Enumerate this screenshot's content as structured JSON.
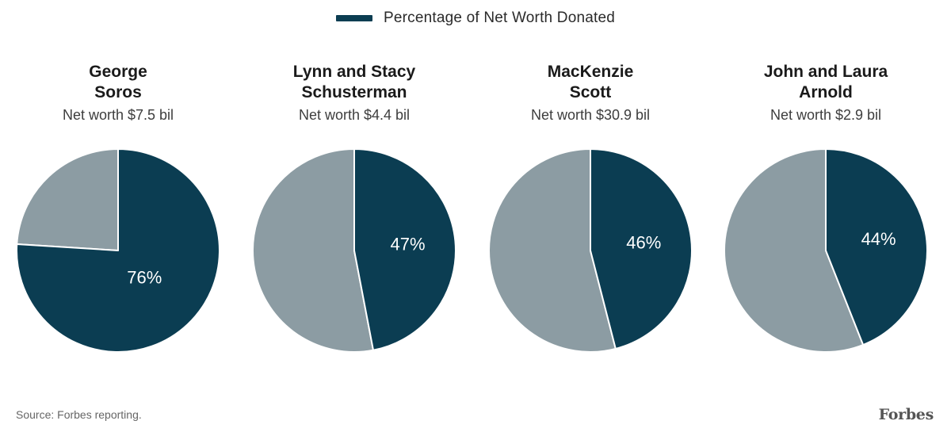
{
  "colors": {
    "donated": "#0b3d52",
    "remaining": "#8c9ca3",
    "label_text": "#ffffff",
    "divider": "#ffffff"
  },
  "legend": {
    "label": "Percentage of Net Worth Donated",
    "swatch_icon": "legend-bar-swatch"
  },
  "chart_data": {
    "type": "pie",
    "series_name": "Percentage of Net Worth Donated",
    "unit": "%",
    "panels": [
      {
        "name_lines": [
          "George",
          "Soros"
        ],
        "subtitle": "Net worth $7.5 bil",
        "donated_percent": 76,
        "label": "76%"
      },
      {
        "name_lines": [
          "Lynn and Stacy",
          "Schusterman"
        ],
        "subtitle": "Net worth $4.4 bil",
        "donated_percent": 47,
        "label": "47%"
      },
      {
        "name_lines": [
          "MacKenzie",
          "Scott"
        ],
        "subtitle": "Net worth $30.9 bil",
        "donated_percent": 46,
        "label": "46%"
      },
      {
        "name_lines": [
          "John and Laura",
          "Arnold"
        ],
        "subtitle": "Net worth $2.9 bil",
        "donated_percent": 44,
        "label": "44%"
      }
    ]
  },
  "footer": {
    "source": "Source: Forbes reporting.",
    "logo": "Forbes"
  }
}
